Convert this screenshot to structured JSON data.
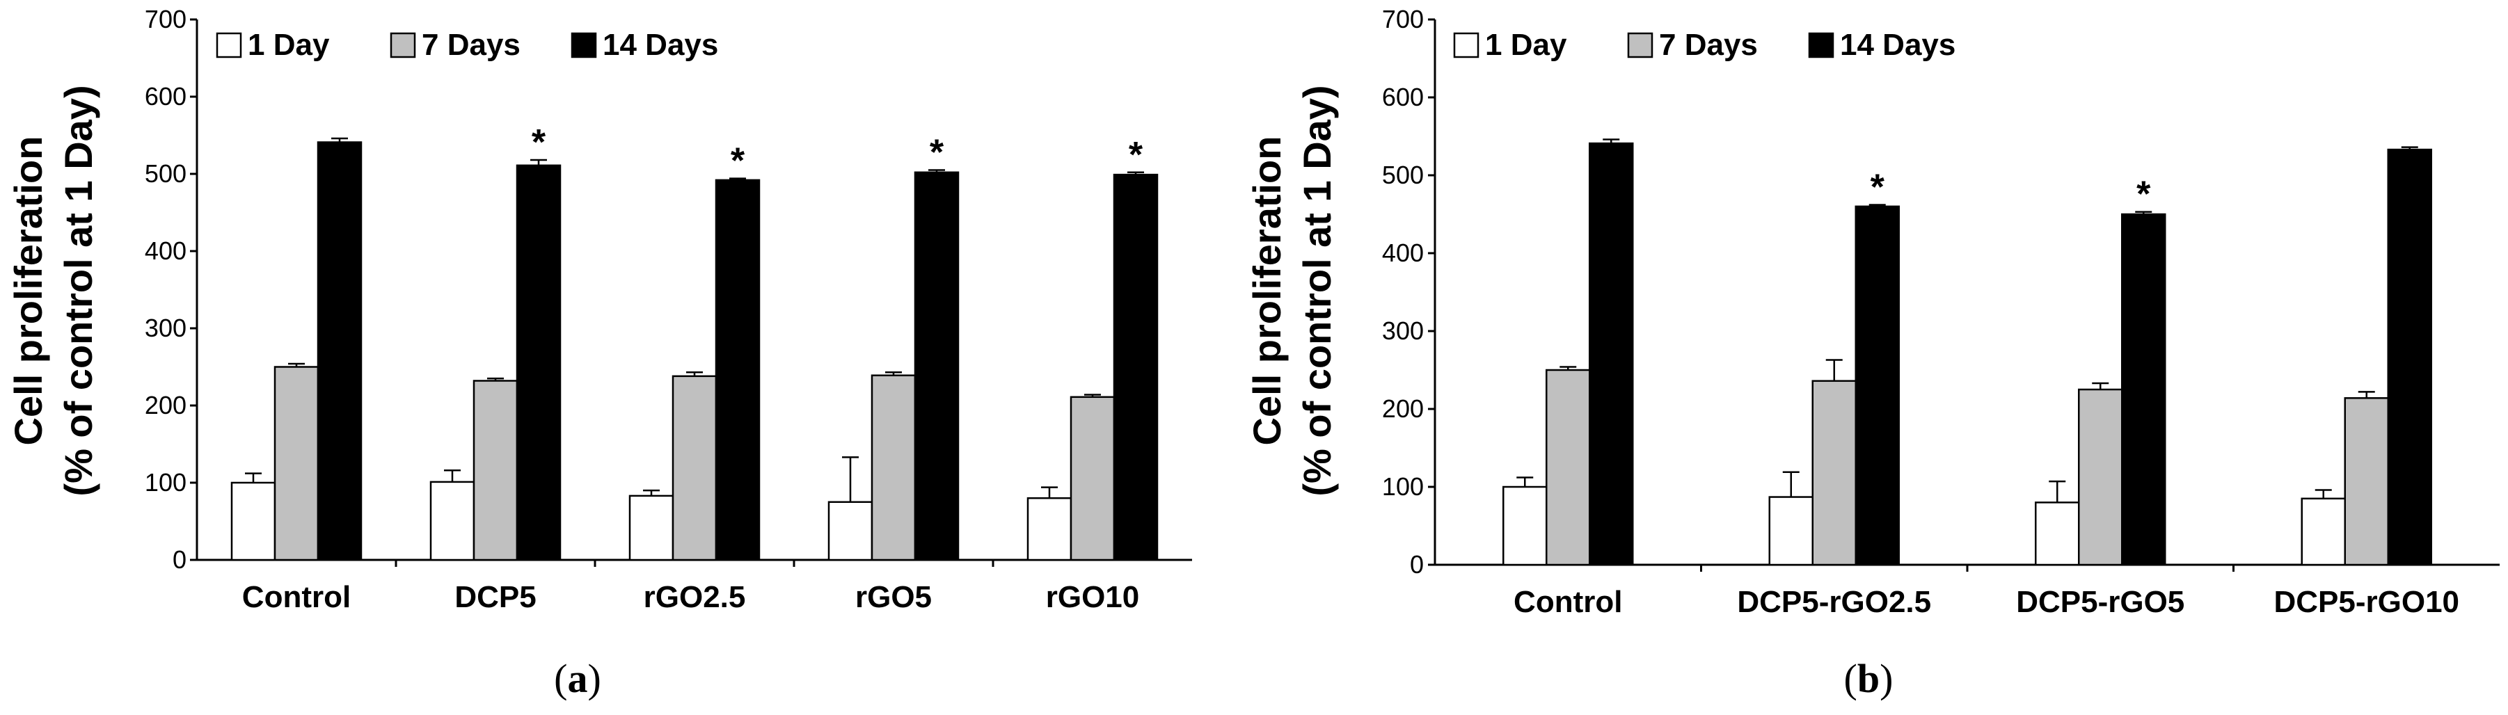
{
  "chart_data": [
    {
      "type": "bar",
      "panel_label": "a",
      "ylabel_line1": "Cell proliferation",
      "ylabel_line2": "(% of control at 1 Day)",
      "ylim": [
        0,
        700
      ],
      "yticks": [
        0,
        100,
        200,
        300,
        400,
        500,
        600,
        700
      ],
      "categories": [
        "Control",
        "DCP5",
        "rGO2.5",
        "rGO5",
        "rGO10"
      ],
      "series": [
        {
          "name": "1 Day",
          "color": "#ffffff",
          "values": [
            100,
            101,
            83,
            75,
            80
          ],
          "errors": [
            12,
            15,
            7,
            58,
            14
          ]
        },
        {
          "name": "7 Days",
          "color": "#c0c0c0",
          "values": [
            250,
            232,
            238,
            239,
            211
          ],
          "errors": [
            4,
            3,
            5,
            4,
            3
          ]
        },
        {
          "name": "14 Days",
          "color": "#000000",
          "values": [
            541,
            511,
            492,
            502,
            499
          ],
          "errors": [
            5,
            7,
            2,
            3,
            3
          ]
        }
      ],
      "significance": {
        "symbol": "*",
        "series": "14 Days",
        "categories": [
          "DCP5",
          "rGO2.5",
          "rGO5",
          "rGO10"
        ]
      },
      "legend": "top-left"
    },
    {
      "type": "bar",
      "panel_label": "b",
      "ylabel_line1": "Cell proliferation",
      "ylabel_line2": "(% of control at 1 Day)",
      "ylim": [
        0,
        700
      ],
      "yticks": [
        0,
        100,
        200,
        300,
        400,
        500,
        600,
        700
      ],
      "categories": [
        "Control",
        "DCP5-rGO2.5",
        "DCP5-rGO5",
        "DCP5-rGO10"
      ],
      "series": [
        {
          "name": "1 Day",
          "color": "#ffffff",
          "values": [
            100,
            87,
            80,
            85
          ],
          "errors": [
            12,
            32,
            27,
            11
          ]
        },
        {
          "name": "7 Days",
          "color": "#c0c0c0",
          "values": [
            250,
            236,
            225,
            214
          ],
          "errors": [
            4,
            27,
            8,
            8
          ]
        },
        {
          "name": "14 Days",
          "color": "#000000",
          "values": [
            541,
            460,
            450,
            533
          ],
          "errors": [
            5,
            2,
            3,
            3
          ]
        }
      ],
      "significance": {
        "symbol": "*",
        "series": "14 Days",
        "categories": [
          "DCP5-rGO2.5",
          "DCP5-rGO5"
        ]
      },
      "legend": "top-left"
    }
  ]
}
